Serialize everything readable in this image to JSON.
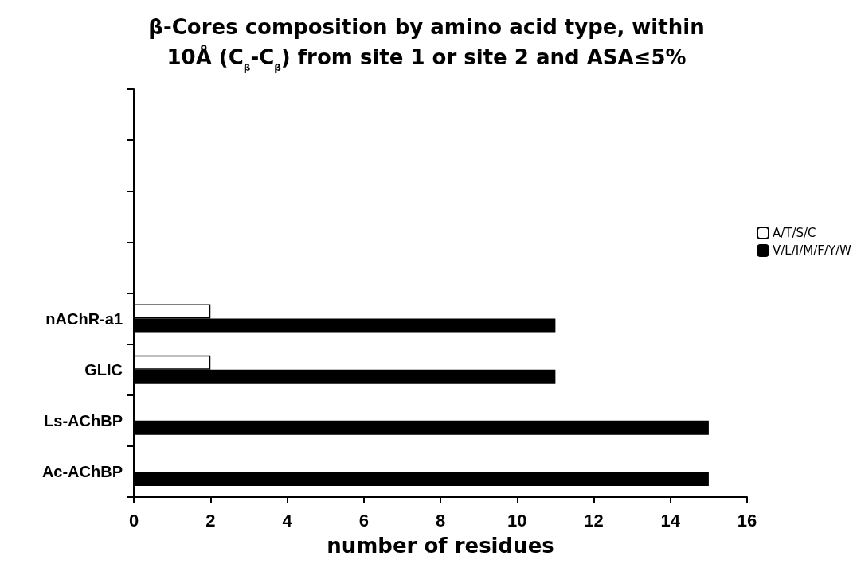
{
  "chart_data": {
    "type": "bar",
    "orientation": "horizontal",
    "title": "β-Cores composition by amino acid type, within\n10Å (C$_{β}$-C$_{β}$) from site 1 or site 2 and ASA≤5%",
    "xlabel": "number of residues",
    "categories": [
      null,
      null,
      null,
      null,
      "nAChR-a1",
      "GLIC",
      "Ls-AChBP",
      "Ac-AChBP"
    ],
    "series": [
      {
        "name": "A/T/S/C",
        "color": "#ffffff",
        "values": [
          null,
          null,
          null,
          null,
          2,
          2,
          null,
          null
        ]
      },
      {
        "name": "V/L/I/M/F/Y/W",
        "color": "#000000",
        "values": [
          null,
          null,
          null,
          null,
          11,
          11,
          15,
          15
        ]
      }
    ],
    "xlim": [
      0,
      16
    ],
    "xticks": [
      0,
      2,
      4,
      6,
      8,
      10,
      12,
      14,
      16
    ],
    "grid": false,
    "legend": "right"
  }
}
